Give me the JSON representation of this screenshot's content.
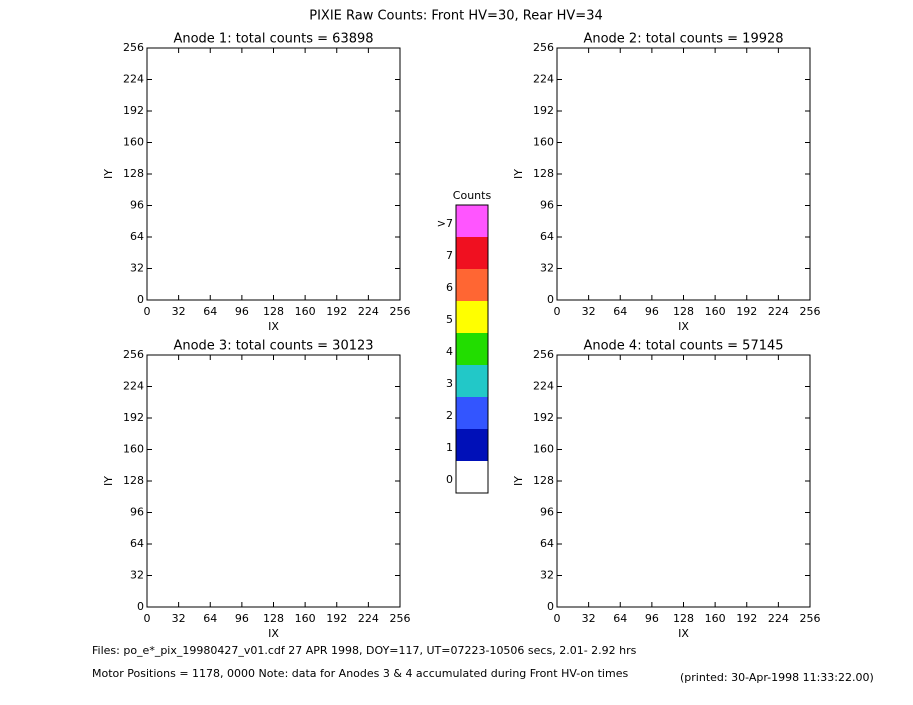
{
  "title": "PIXIE Raw Counts:  Front HV=30, Rear HV=34",
  "chart_data": [
    {
      "type": "heatmap",
      "title": "Anode 1: total counts = 63898",
      "xlabel": "IX",
      "ylabel": "IY",
      "xlim": [
        0,
        256
      ],
      "ylim": [
        0,
        256
      ],
      "xticks": [
        0,
        32,
        64,
        96,
        128,
        160,
        192,
        224,
        256
      ],
      "yticks": [
        0,
        32,
        64,
        96,
        128,
        160,
        192,
        224,
        256
      ]
    },
    {
      "type": "heatmap",
      "title": "Anode 2: total counts = 19928",
      "xlabel": "IX",
      "ylabel": "IY",
      "xlim": [
        0,
        256
      ],
      "ylim": [
        0,
        256
      ],
      "xticks": [
        0,
        32,
        64,
        96,
        128,
        160,
        192,
        224,
        256
      ],
      "yticks": [
        0,
        32,
        64,
        96,
        128,
        160,
        192,
        224,
        256
      ]
    },
    {
      "type": "heatmap",
      "title": "Anode 3: total counts = 30123",
      "xlabel": "IX",
      "ylabel": "IY",
      "xlim": [
        0,
        256
      ],
      "ylim": [
        0,
        256
      ],
      "xticks": [
        0,
        32,
        64,
        96,
        128,
        160,
        192,
        224,
        256
      ],
      "yticks": [
        0,
        32,
        64,
        96,
        128,
        160,
        192,
        224,
        256
      ]
    },
    {
      "type": "heatmap",
      "title": "Anode 4: total counts = 57145",
      "xlabel": "IX",
      "ylabel": "IY",
      "xlim": [
        0,
        256
      ],
      "ylim": [
        0,
        256
      ],
      "xticks": [
        0,
        32,
        64,
        96,
        128,
        160,
        192,
        224,
        256
      ],
      "yticks": [
        0,
        32,
        64,
        96,
        128,
        160,
        192,
        224,
        256
      ]
    }
  ],
  "colorbar": {
    "title": "Counts",
    "levels": [
      {
        "label": ">7",
        "color": "#ff55ff"
      },
      {
        "label": "7",
        "color": "#f01020"
      },
      {
        "label": "6",
        "color": "#ff6633"
      },
      {
        "label": "5",
        "color": "#ffff00"
      },
      {
        "label": "4",
        "color": "#22dd00"
      },
      {
        "label": "3",
        "color": "#22c8c8"
      },
      {
        "label": "2",
        "color": "#3355ff"
      },
      {
        "label": "1",
        "color": "#0010b8"
      },
      {
        "label": "0",
        "color": "#ffffff"
      }
    ]
  },
  "footer": {
    "files": "Files: po_e*_pix_19980427_v01.cdf    27 APR 1998, DOY=117, UT=07223-10506 secs,  2.01- 2.92 hrs",
    "motor": "Motor Positions = 1178, 0000   Note: data for Anodes 3 & 4 accumulated during Front HV-on times",
    "printed": "(printed: 30-Apr-1998 11:33:22.00)"
  }
}
